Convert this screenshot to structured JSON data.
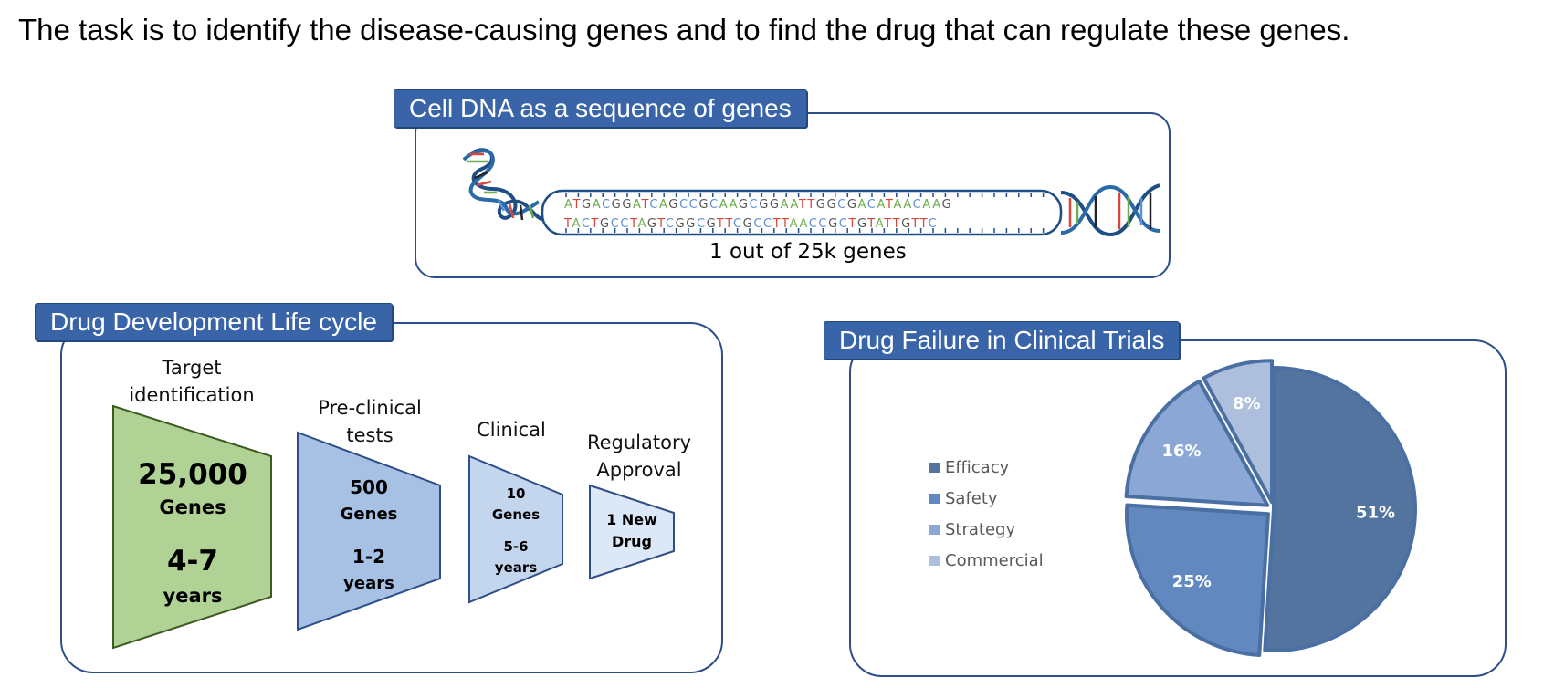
{
  "headline": "The task is to identify the disease-causing genes and to find the drug that can regulate these genes.",
  "dna_panel": {
    "title": "Cell DNA as a sequence of genes",
    "strand_top": "ATGACGGATCAGCCGCAAGCGGAATTGGCGACATAACAAG",
    "strand_bottom": "TACTGCCTAGTCGGCGTTCGCCTTAACCGCTGTATTGTTC",
    "caption": "1 out of 25k genes",
    "base_colors": {
      "A": "#6cae4f",
      "T": "#d8453b",
      "G": "#555555",
      "C": "#5b8fd6"
    }
  },
  "lifecycle_panel": {
    "title": "Drug Development Life cycle",
    "stages": [
      {
        "title": [
          "Target",
          "identification"
        ],
        "count": "25,000",
        "unit": "Genes",
        "duration": "4-7",
        "duration_unit": "years",
        "fill": "#b1d295",
        "stroke": "#3d5a22"
      },
      {
        "title": [
          "Pre-clinical",
          "tests"
        ],
        "count": "500",
        "unit": "Genes",
        "duration": "1-2",
        "duration_unit": "years",
        "fill": "#a6c1e4",
        "stroke": "#2e4e8a"
      },
      {
        "title": [
          "Clinical"
        ],
        "count": "10",
        "unit": "Genes",
        "duration": "5-6",
        "duration_unit": "years",
        "fill": "#c4d6ee",
        "stroke": "#2e4e8a"
      },
      {
        "title": [
          "Regulatory",
          "Approval"
        ],
        "count": "1 New",
        "unit": "Drug",
        "duration": "",
        "duration_unit": "",
        "fill": "#dde8f6",
        "stroke": "#2e4e8a"
      }
    ]
  },
  "failure_panel": {
    "title": "Drug Failure in Clinical Trials"
  },
  "chart_data": {
    "type": "pie",
    "title": "",
    "legend_position": "left",
    "slices": [
      {
        "label": "Efficacy",
        "value": 51,
        "display": "51%",
        "color": "#52749e"
      },
      {
        "label": "Safety",
        "value": 25,
        "display": "25%",
        "color": "#6189c0"
      },
      {
        "label": "Strategy",
        "value": 16,
        "display": "16%",
        "color": "#8aa7d6"
      },
      {
        "label": "Commercial",
        "value": 8,
        "display": "8%",
        "color": "#adbfdd"
      }
    ]
  }
}
